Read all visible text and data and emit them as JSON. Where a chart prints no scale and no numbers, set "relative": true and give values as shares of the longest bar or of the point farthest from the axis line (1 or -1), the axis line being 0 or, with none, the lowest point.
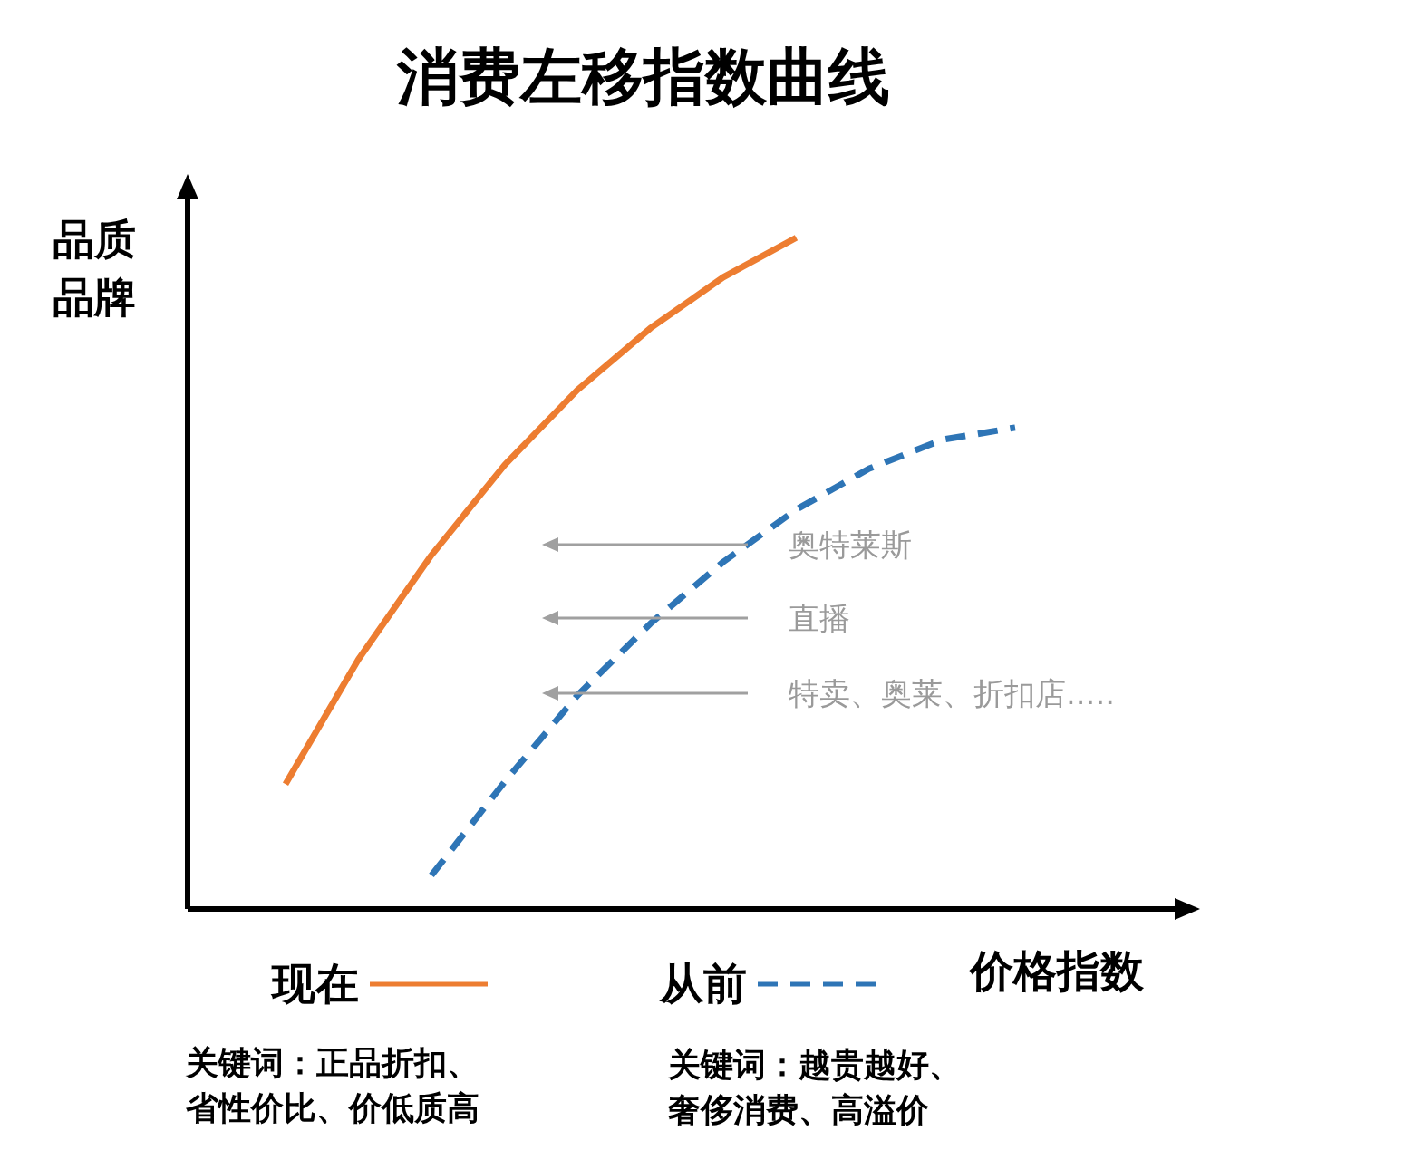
{
  "chart_data": {
    "type": "line",
    "title": "消费左移指数曲线",
    "xlabel": "价格指数",
    "ylabel": "品质品牌",
    "relative": true,
    "grid": false,
    "legend": "bottom",
    "marker": "none",
    "categories": [
      null,
      null,
      null,
      null,
      null,
      null,
      null,
      null,
      null,
      null,
      null
    ],
    "series": [
      {
        "name": "现在",
        "color": "#ed7d31",
        "line_style": "solid",
        "values": [
          0.186,
          0.372,
          0.527,
          0.661,
          0.773,
          0.865,
          0.941,
          1.0,
          null,
          null,
          null
        ]
      },
      {
        "name": "从前",
        "color": "#2e75b6",
        "line_style": "dashed",
        "values": [
          null,
          null,
          0.05,
          0.189,
          0.318,
          0.425,
          0.517,
          0.595,
          0.656,
          0.699,
          0.717
        ]
      }
    ],
    "annotations": [
      "奥特莱斯",
      "直播",
      "特卖、奥莱、折扣店.....",
      "关键词：正品折扣、省性价比、价低质高",
      "关键词：越贵越好、奢侈消费、高溢价"
    ]
  }
}
